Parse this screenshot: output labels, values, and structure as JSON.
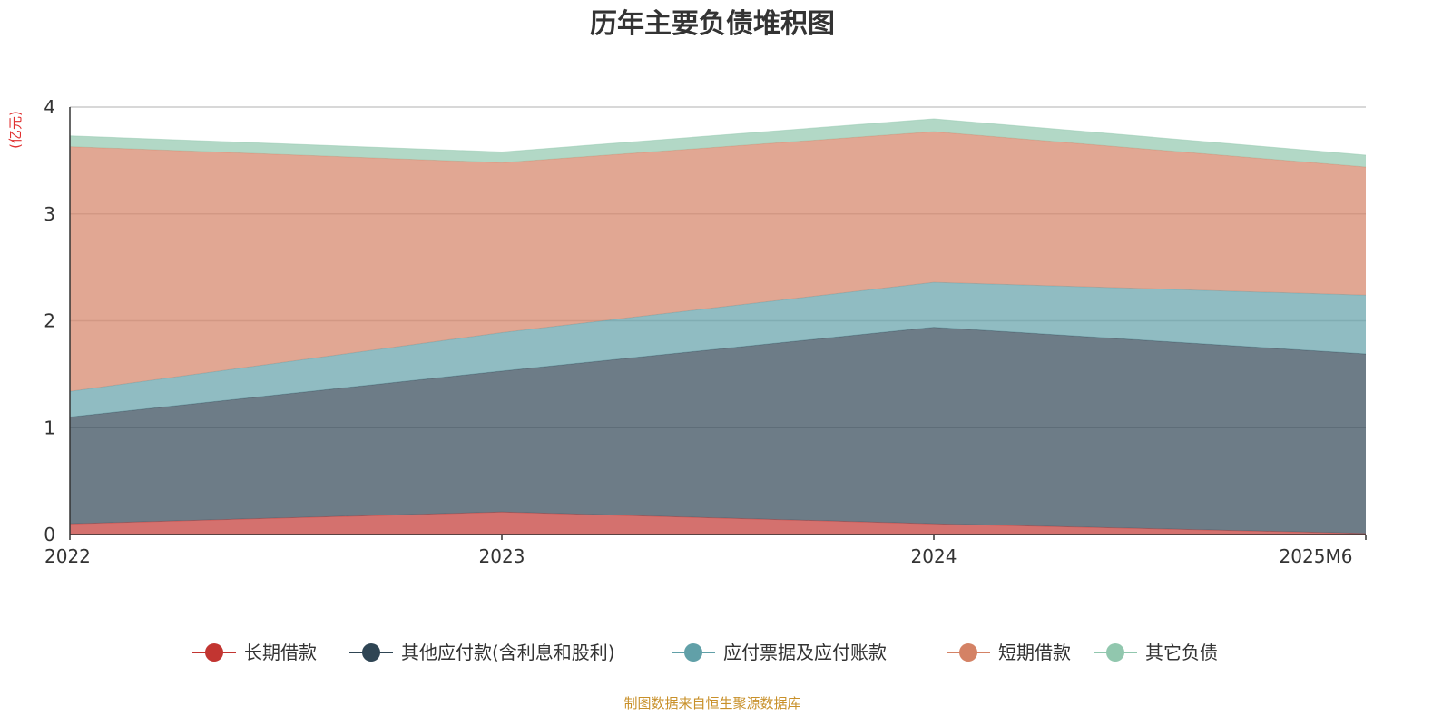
{
  "chart_data": {
    "type": "area",
    "stacked": true,
    "title": "历年主要负债堆积图",
    "ylabel": "(亿元)",
    "xlabel": "",
    "categories": [
      "2022",
      "2023",
      "2024",
      "2025M6"
    ],
    "ylim": [
      0,
      4
    ],
    "yticks": [
      "0",
      "1",
      "2",
      "3",
      "4"
    ],
    "grid": true,
    "legend_position": "bottom",
    "series": [
      {
        "name": "长期借款",
        "color": "#c23531",
        "values": [
          0.1,
          0.21,
          0.1,
          0.01
        ]
      },
      {
        "name": "其他应付款(含利息和股利)",
        "color": "#2f4554",
        "values": [
          1.0,
          1.32,
          1.84,
          1.68
        ]
      },
      {
        "name": "应付票据及应付账款",
        "color": "#61a0a8",
        "values": [
          0.24,
          0.36,
          0.42,
          0.55
        ]
      },
      {
        "name": "短期借款",
        "color": "#d48265",
        "values": [
          2.29,
          1.59,
          1.41,
          1.2
        ]
      },
      {
        "name": "其它负债",
        "color": "#91c7ae",
        "values": [
          0.1,
          0.1,
          0.12,
          0.11
        ]
      }
    ],
    "source": "制图数据来自恒生聚源数据库"
  }
}
